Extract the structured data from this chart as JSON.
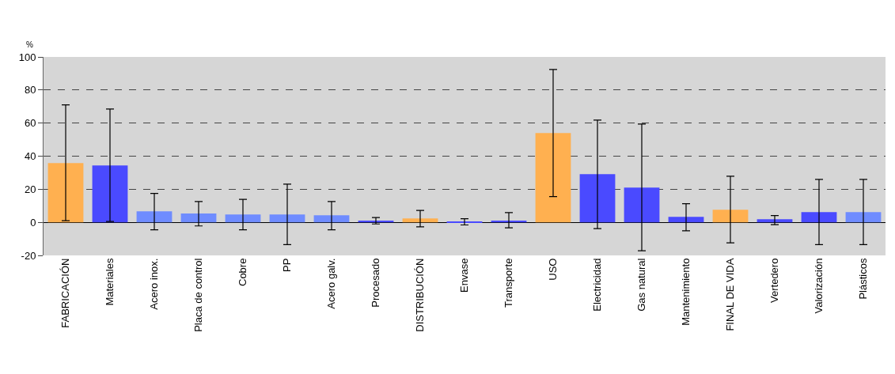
{
  "chart_data": {
    "type": "bar",
    "ylabel": "%",
    "categories": [
      "FABRICACIÓN",
      "Materiales",
      "Acero inox.",
      "Placa de control",
      "Cobre",
      "PP",
      "Acero galv.",
      "Procesado",
      "DISTRIBUCIÓN",
      "Envase",
      "Transporte",
      "USO",
      "Electricidad",
      "Gas natural",
      "Mantenimiento",
      "FINAL DE VIDA",
      "Vertedero",
      "Valorización",
      "Plásticos"
    ],
    "values": [
      35.8,
      34.4,
      6.7,
      5.3,
      4.8,
      4.8,
      4.3,
      1.0,
      2.4,
      0.5,
      1.0,
      54.0,
      29.1,
      21.0,
      3.3,
      7.6,
      1.9,
      6.2,
      6.2
    ],
    "errors": [
      [
        1,
        71
      ],
      [
        0.5,
        68.5
      ],
      [
        -4.5,
        17.5
      ],
      [
        -2.2,
        12.6
      ],
      [
        -4.5,
        13.9
      ],
      [
        -13.5,
        23.1
      ],
      [
        -4.5,
        12.6
      ],
      [
        -1,
        2.9
      ],
      [
        -2.7,
        7.2
      ],
      [
        -1.6,
        2.2
      ],
      [
        -3.3,
        5.9
      ],
      [
        15.6,
        92.4
      ],
      [
        -3.8,
        61.8
      ],
      [
        -17.2,
        59.4
      ],
      [
        -5.1,
        11.3
      ],
      [
        -12.4,
        27.9
      ],
      [
        -1.4,
        4.1
      ],
      [
        -13.5,
        26
      ],
      [
        -13.5,
        26
      ]
    ],
    "colors": [
      "#ffb050",
      "#4a4aff",
      "#6f8cff",
      "#6f8cff",
      "#6f8cff",
      "#6f8cff",
      "#6f8cff",
      "#4a4aff",
      "#ffb050",
      "#4a4aff",
      "#4a4aff",
      "#ffb050",
      "#4a4aff",
      "#4a4aff",
      "#4a4aff",
      "#ffb050",
      "#4a4aff",
      "#4a4aff",
      "#6f8cff"
    ],
    "ylim": [
      -20,
      100
    ],
    "yticks": [
      -20,
      0,
      20,
      40,
      60,
      80,
      100
    ],
    "grid": "y",
    "legend": false
  }
}
